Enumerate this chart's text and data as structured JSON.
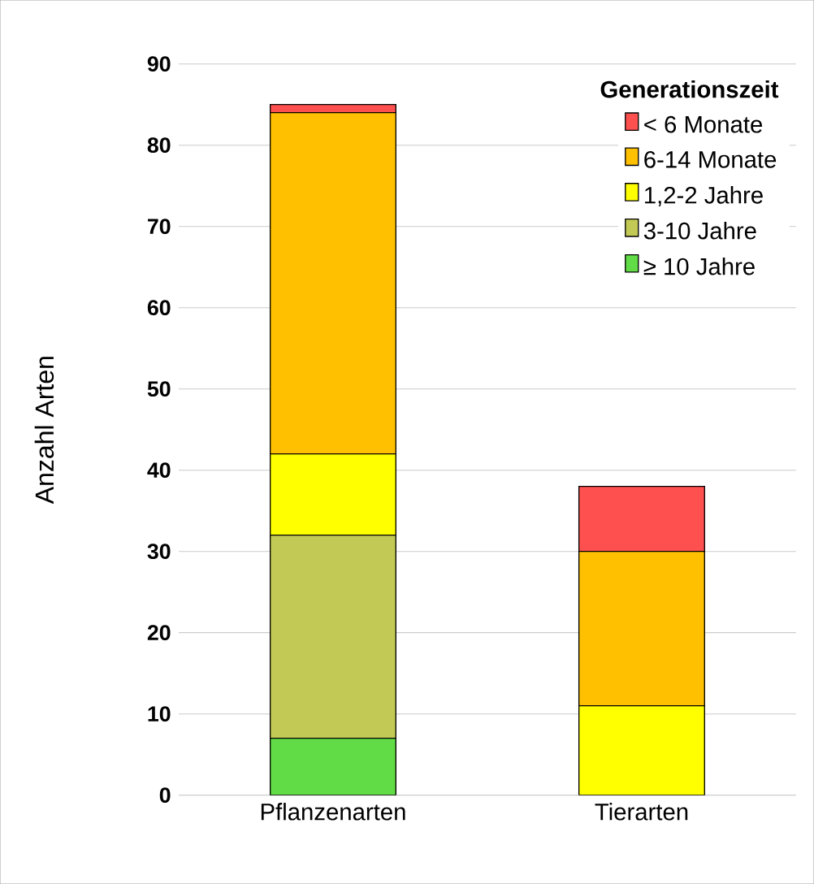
{
  "chart_data": {
    "type": "bar",
    "stacked": true,
    "ylabel": "Anzahl Arten",
    "legend_title": "Generationszeit",
    "categories": [
      "Pflanzenarten",
      "Tierarten"
    ],
    "series": [
      {
        "name": "≥ 10 Jahre",
        "color": "#62dc46",
        "values": [
          7,
          0
        ]
      },
      {
        "name": "3-10 Jahre",
        "color": "#c3c955",
        "values": [
          25,
          0
        ]
      },
      {
        "name": "1,2-2 Jahre",
        "color": "#ffff00",
        "values": [
          10,
          11
        ]
      },
      {
        "name": "6-14 Monate",
        "color": "#ffc000",
        "values": [
          42,
          19
        ]
      },
      {
        "name": "< 6 Monate",
        "color": "#ff5050",
        "values": [
          1,
          8
        ]
      }
    ],
    "ylim": [
      0,
      90
    ],
    "yticks": [
      0,
      10,
      20,
      30,
      40,
      50,
      60,
      70,
      80,
      90
    ],
    "grid": "y",
    "legend": "top right"
  }
}
